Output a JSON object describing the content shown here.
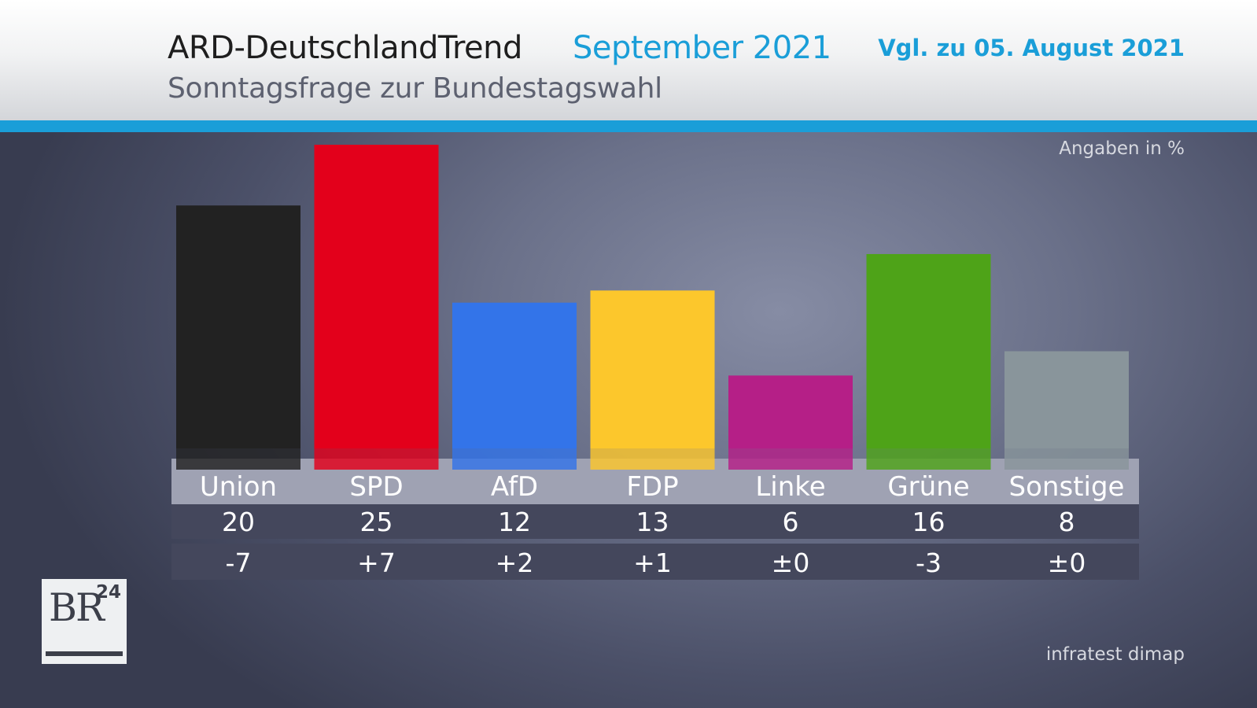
{
  "header": {
    "title": "ARD-DeutschlandTrend",
    "month": "September 2021",
    "subtitle": "Sonntagsfrage zur Bundestagswahl",
    "comparison": "Vgl. zu 05. August 2021"
  },
  "unit_note": "Angaben in %",
  "source": "infratest dimap",
  "logo": {
    "letters": "BR",
    "number": "24"
  },
  "colors": {
    "accent": "#1a9ed8",
    "Union": "#222222",
    "SPD": "#e3001b",
    "AfD": "#3374e9",
    "FDP": "#fcc72c",
    "Linke": "#b51f87",
    "Grüne": "#4ea318",
    "Sonstige": "#89959b"
  },
  "chart_data": {
    "type": "bar",
    "title": "Sonntagsfrage zur Bundestagswahl",
    "xlabel": "",
    "ylabel": "Angaben in %",
    "ylim": [
      0,
      25
    ],
    "categories": [
      "Union",
      "SPD",
      "AfD",
      "FDP",
      "Linke",
      "Grüne",
      "Sonstige"
    ],
    "values": [
      20,
      25,
      12,
      13,
      6,
      16,
      8
    ],
    "change_labels": [
      "-7",
      "+7",
      "+2",
      "+1",
      "±0",
      "-3",
      "±0"
    ],
    "grid": false,
    "legend": "none"
  }
}
